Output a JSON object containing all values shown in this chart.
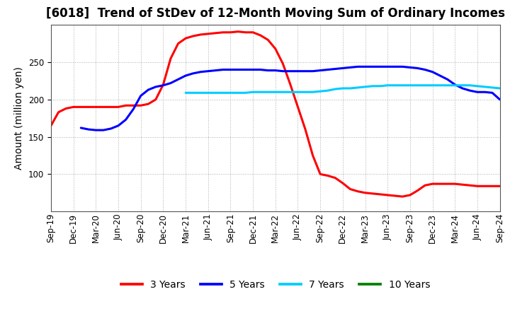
{
  "title": "[6018]  Trend of StDev of 12-Month Moving Sum of Ordinary Incomes",
  "ylabel": "Amount (million yen)",
  "ylim": [
    50,
    300
  ],
  "yticks": [
    100,
    150,
    200,
    250
  ],
  "background_color": "#ffffff",
  "grid_color": "#aaaaaa",
  "series": {
    "3 Years": {
      "color": "#ff0000",
      "x": [
        0,
        1,
        2,
        3,
        4,
        5,
        6,
        7,
        8,
        9,
        10,
        11,
        12,
        13,
        14,
        15,
        16,
        17,
        18,
        19,
        20,
        21,
        22,
        23,
        24,
        25,
        26,
        27,
        28,
        29,
        30,
        31,
        32,
        33,
        34,
        35,
        36,
        37,
        38,
        39,
        40,
        41,
        42,
        43,
        44,
        45,
        46,
        47,
        48,
        49,
        50,
        51,
        52,
        53,
        54,
        55,
        56,
        57,
        58,
        59,
        60
      ],
      "y": [
        165,
        183,
        188,
        190,
        190,
        190,
        190,
        190,
        190,
        190,
        192,
        192,
        192,
        194,
        200,
        220,
        255,
        275,
        282,
        285,
        287,
        288,
        289,
        290,
        290,
        291,
        290,
        290,
        286,
        280,
        268,
        248,
        220,
        190,
        160,
        125,
        100,
        98,
        95,
        88,
        80,
        77,
        75,
        74,
        73,
        72,
        71,
        70,
        72,
        78,
        85,
        87,
        87,
        87,
        87,
        86,
        85,
        84,
        84,
        84,
        84
      ]
    },
    "5 Years": {
      "color": "#0000ff",
      "x": [
        4,
        5,
        6,
        7,
        8,
        9,
        10,
        11,
        12,
        13,
        14,
        15,
        16,
        17,
        18,
        19,
        20,
        21,
        22,
        23,
        24,
        25,
        26,
        27,
        28,
        29,
        30,
        31,
        32,
        33,
        34,
        35,
        36,
        37,
        38,
        39,
        40,
        41,
        42,
        43,
        44,
        45,
        46,
        47,
        48,
        49,
        50,
        51,
        52,
        53,
        54,
        55,
        56,
        57,
        58,
        59,
        60
      ],
      "y": [
        162,
        160,
        159,
        159,
        161,
        165,
        173,
        187,
        205,
        213,
        217,
        219,
        222,
        227,
        232,
        235,
        237,
        238,
        239,
        240,
        240,
        240,
        240,
        240,
        240,
        239,
        239,
        238,
        238,
        238,
        238,
        238,
        239,
        240,
        241,
        242,
        243,
        244,
        244,
        244,
        244,
        244,
        244,
        244,
        243,
        242,
        240,
        237,
        232,
        227,
        220,
        215,
        212,
        210,
        210,
        209,
        200
      ]
    },
    "7 Years": {
      "color": "#00ccff",
      "x": [
        18,
        19,
        20,
        21,
        22,
        23,
        24,
        25,
        26,
        27,
        28,
        29,
        30,
        31,
        32,
        33,
        34,
        35,
        36,
        37,
        38,
        39,
        40,
        41,
        42,
        43,
        44,
        45,
        46,
        47,
        48,
        49,
        50,
        51,
        52,
        53,
        54,
        55,
        56,
        57,
        58,
        59,
        60
      ],
      "y": [
        209,
        209,
        209,
        209,
        209,
        209,
        209,
        209,
        209,
        210,
        210,
        210,
        210,
        210,
        210,
        210,
        210,
        210,
        211,
        212,
        214,
        215,
        215,
        216,
        217,
        218,
        218,
        219,
        219,
        219,
        219,
        219,
        219,
        219,
        219,
        219,
        219,
        219,
        219,
        218,
        217,
        216,
        215
      ]
    },
    "10 Years": {
      "color": "#008000",
      "x": [],
      "y": []
    }
  },
  "x_labels": [
    "Sep-19",
    "Dec-19",
    "Mar-20",
    "Jun-20",
    "Sep-20",
    "Dec-20",
    "Mar-21",
    "Jun-21",
    "Sep-21",
    "Dec-21",
    "Mar-22",
    "Jun-22",
    "Sep-22",
    "Dec-22",
    "Mar-23",
    "Jun-23",
    "Sep-23",
    "Dec-23",
    "Mar-24",
    "Jun-24",
    "Sep-24"
  ],
  "x_tick_positions": [
    0,
    3,
    6,
    9,
    12,
    15,
    18,
    21,
    24,
    27,
    30,
    33,
    36,
    39,
    42,
    45,
    48,
    51,
    54,
    57,
    60
  ],
  "title_fontsize": 12,
  "label_fontsize": 10,
  "tick_fontsize": 8.5,
  "legend_fontsize": 10,
  "linewidth": 2.2
}
